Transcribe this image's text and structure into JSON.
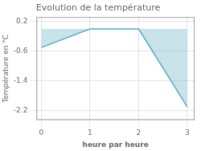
{
  "chart_data": {
    "type": "line",
    "title": "Evolution de la température",
    "xlabel": "heure par heure",
    "ylabel": "Température en °C",
    "x": [
      0,
      1,
      2,
      3
    ],
    "values": [
      -0.5,
      0.0,
      0.0,
      -2.1
    ],
    "color": "#5baabf",
    "xlim": [
      -0.1,
      3.15
    ],
    "ylim": [
      -2.45,
      0.32
    ],
    "xticks": [
      0,
      1,
      2,
      3
    ],
    "yticks": [
      0.2,
      -0.6,
      -1.4,
      -2.2
    ],
    "grid": true
  }
}
